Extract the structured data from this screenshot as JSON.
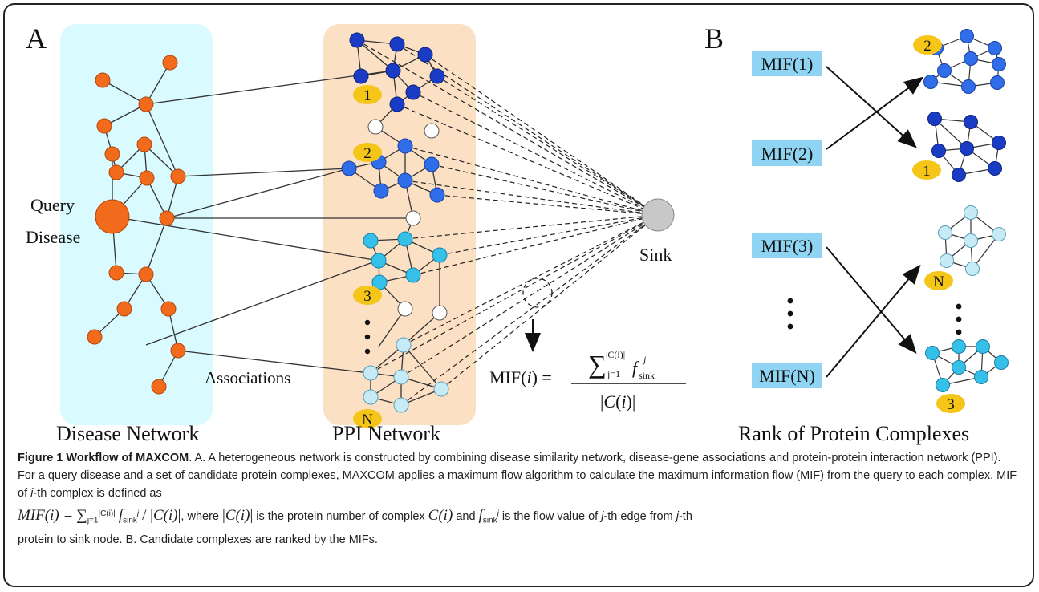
{
  "panels": {
    "a_label": "A",
    "b_label": "B"
  },
  "panel_a": {
    "query_line1": "Query",
    "query_line2": "Disease",
    "sink_label": "Sink",
    "associations_label": "Associations",
    "disease_network_label": "Disease Network",
    "ppi_network_label": "PPI Network",
    "complex_markers": [
      "1",
      "2",
      "3",
      "N"
    ],
    "formula_lhs": "MIF(i) =",
    "formula_sum_upper": "|C(i)|",
    "formula_sum_lower": "j=1",
    "formula_f": "f",
    "formula_f_sub": "sink",
    "formula_f_sup": "j",
    "formula_denominator": "|C(i)|"
  },
  "panel_b": {
    "mif_labels": [
      "MIF(1)",
      "MIF(2)",
      "MIF(3)",
      "MIF(N)"
    ],
    "rank_markers": [
      "2",
      "1",
      "N",
      "3"
    ],
    "rank_label": "Rank of Protein Complexes"
  },
  "colors": {
    "disease_node": "#f26a1b",
    "disease_region": "#d9fafe",
    "ppi_region": "#fbe0c4",
    "complex_dark": "#1a3cc4",
    "complex_mid": "#2f6ee8",
    "complex_cyan": "#35c0ea",
    "complex_light": "#c6ebf6",
    "marker": "#f5c518",
    "mif_box": "#8fd4f3",
    "sink": "#c8c8c8"
  },
  "caption": {
    "bold_lead": "Figure 1 Workflow of MAXCOM",
    "text_part1": ". A. A heterogeneous network is constructed by combining disease similarity network, disease-gene associations and protein-protein interaction network (PPI). For a query disease and a set of candidate protein complexes, MAXCOM applies a maximum flow algorithm to calculate the maximum information flow (MIF) from the query to each complex. MIF of ",
    "i_th": "i",
    "text_part2": "-th complex is defined as",
    "formula_mif": "MIF(i) =",
    "formula_where": "where",
    "formula_is_number": "is the protein number of complex",
    "formula_complex": "C(i)",
    "formula_and": "and",
    "formula_flow_desc1": "is the flow value of",
    "j1": "j",
    "formula_flow_desc2": "-th edge from",
    "j2": "j",
    "formula_flow_desc3": "-th",
    "text_part3": "protein to sink node. B. Candidate complexes are ranked by the MIFs."
  }
}
